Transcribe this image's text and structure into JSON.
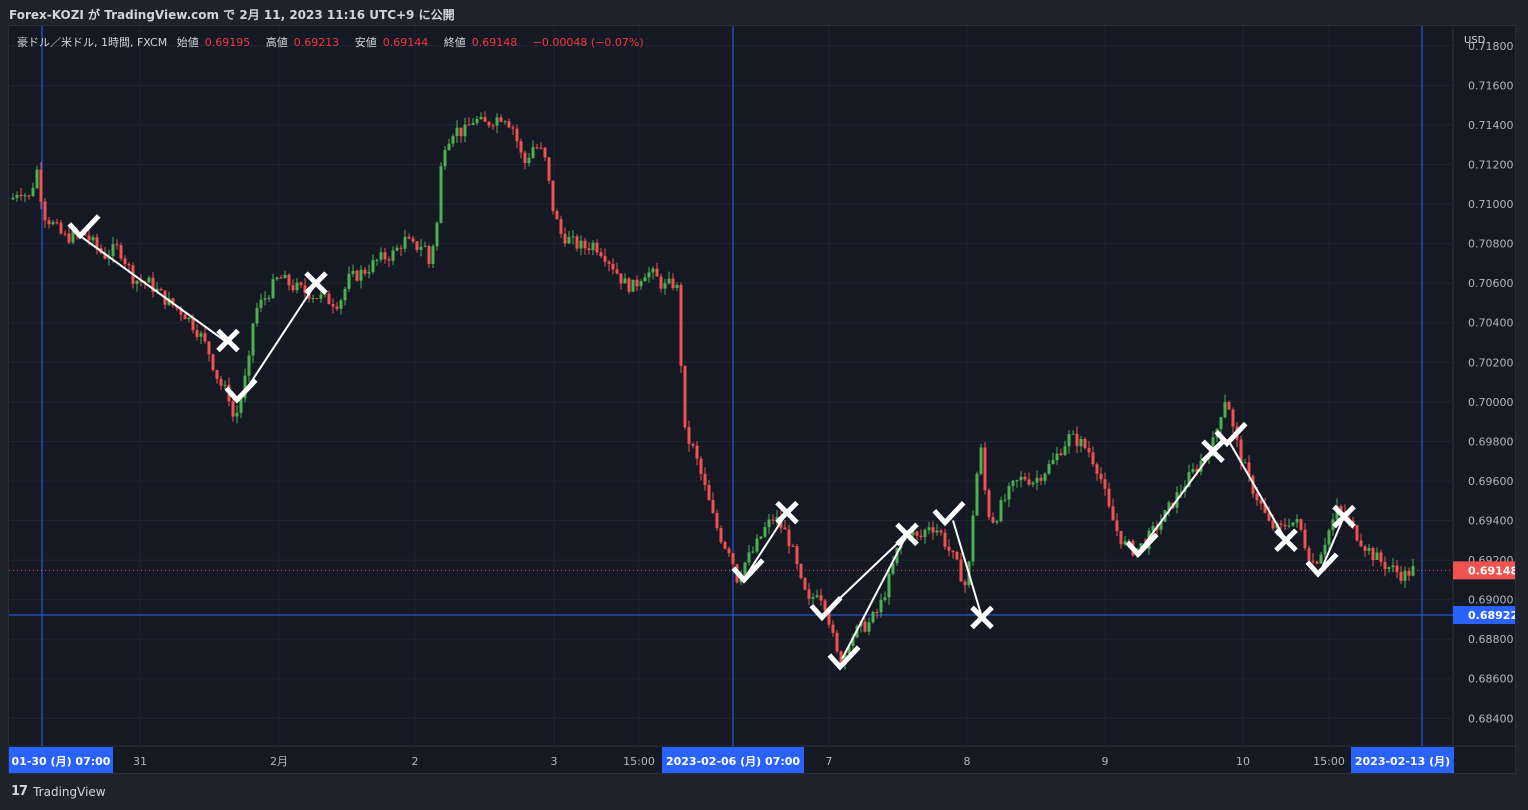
{
  "header": {
    "title": "Forex-KOZI が TradingView.com で 2月 11, 2023 11:16 UTC+9 に公開"
  },
  "legend": {
    "symbol": "豪ドル／米ドル, 1時間, FXCM",
    "open_label": "始値",
    "open": "0.69195",
    "high_label": "高値",
    "high": "0.69213",
    "low_label": "安値",
    "low": "0.69144",
    "close_label": "終値",
    "close": "0.69148",
    "change": "−0.00048 (−0.07%)"
  },
  "footer": {
    "logo": "17",
    "brand": "TradingView"
  },
  "colors": {
    "up": "#4caf50",
    "down": "#ef5350",
    "accent": "#2962ff",
    "background": "#151924"
  },
  "chart_data": {
    "type": "candlestick",
    "currency_label": "USD",
    "y_ticks": [
      "0.71800",
      "0.71600",
      "0.71400",
      "0.71200",
      "0.71000",
      "0.70800",
      "0.70600",
      "0.70400",
      "0.70200",
      "0.70000",
      "0.69800",
      "0.69600",
      "0.69400",
      "0.69200",
      "0.69000",
      "0.68800",
      "0.68600",
      "0.68400"
    ],
    "ylim": [
      0.6826,
      0.719
    ],
    "x_labels": [
      "31",
      "2月",
      "2",
      "3",
      "15:00",
      "7",
      "8",
      "9",
      "10",
      "15:00"
    ],
    "x_highlights": [
      "01-30 (月)   07:00",
      "2023-02-06 (月)   07:00",
      "2023-02-13 (月)"
    ],
    "last_price": "0.69148",
    "crosshair_price": "0.68922",
    "crosshair_value": 0.68922,
    "last_value": 0.69148,
    "price_path": [
      [
        0,
        0.71
      ],
      [
        10,
        0.7108
      ],
      [
        20,
        0.7103
      ],
      [
        28,
        0.7117
      ],
      [
        35,
        0.7095
      ],
      [
        55,
        0.7083
      ],
      [
        75,
        0.7085
      ],
      [
        95,
        0.7074
      ],
      [
        110,
        0.7078
      ],
      [
        125,
        0.7062
      ],
      [
        140,
        0.706
      ],
      [
        160,
        0.705
      ],
      [
        175,
        0.7045
      ],
      [
        190,
        0.7035
      ],
      [
        200,
        0.7025
      ],
      [
        210,
        0.701
      ],
      [
        220,
        0.7003
      ],
      [
        225,
        0.699
      ],
      [
        230,
        0.6998
      ],
      [
        240,
        0.702
      ],
      [
        245,
        0.7045
      ],
      [
        255,
        0.7052
      ],
      [
        270,
        0.7063
      ],
      [
        285,
        0.7058
      ],
      [
        300,
        0.7055
      ],
      [
        315,
        0.7052
      ],
      [
        330,
        0.705
      ],
      [
        340,
        0.7062
      ],
      [
        355,
        0.7066
      ],
      [
        370,
        0.7072
      ],
      [
        385,
        0.7075
      ],
      [
        395,
        0.7082
      ],
      [
        405,
        0.7078
      ],
      [
        415,
        0.708
      ],
      [
        420,
        0.707
      ],
      [
        428,
        0.709
      ],
      [
        430,
        0.711
      ],
      [
        435,
        0.713
      ],
      [
        445,
        0.7138
      ],
      [
        455,
        0.7136
      ],
      [
        465,
        0.7143
      ],
      [
        475,
        0.714
      ],
      [
        485,
        0.7143
      ],
      [
        495,
        0.7145
      ],
      [
        505,
        0.7138
      ],
      [
        510,
        0.7128
      ],
      [
        515,
        0.712
      ],
      [
        525,
        0.713
      ],
      [
        535,
        0.7125
      ],
      [
        540,
        0.711
      ],
      [
        545,
        0.7095
      ],
      [
        552,
        0.7085
      ],
      [
        565,
        0.708
      ],
      [
        575,
        0.7078
      ],
      [
        585,
        0.708
      ],
      [
        595,
        0.7075
      ],
      [
        605,
        0.7068
      ],
      [
        615,
        0.706
      ],
      [
        625,
        0.7058
      ],
      [
        635,
        0.7066
      ],
      [
        645,
        0.7064
      ],
      [
        655,
        0.7058
      ],
      [
        665,
        0.706
      ],
      [
        670,
        0.7055
      ],
      [
        672,
        0.702
      ],
      [
        675,
        0.6985
      ],
      [
        685,
        0.6975
      ],
      [
        695,
        0.6958
      ],
      [
        705,
        0.694
      ],
      [
        715,
        0.6928
      ],
      [
        722,
        0.6925
      ],
      [
        727,
        0.691
      ],
      [
        735,
        0.6918
      ],
      [
        745,
        0.6925
      ],
      [
        755,
        0.6935
      ],
      [
        765,
        0.6942
      ],
      [
        775,
        0.6935
      ],
      [
        780,
        0.693
      ],
      [
        785,
        0.6922
      ],
      [
        792,
        0.6908
      ],
      [
        800,
        0.6898
      ],
      [
        808,
        0.6905
      ],
      [
        815,
        0.69
      ],
      [
        820,
        0.689
      ],
      [
        825,
        0.6878
      ],
      [
        830,
        0.6868
      ],
      [
        835,
        0.6872
      ],
      [
        840,
        0.688
      ],
      [
        850,
        0.6885
      ],
      [
        860,
        0.6888
      ],
      [
        870,
        0.6895
      ],
      [
        880,
        0.691
      ],
      [
        890,
        0.6928
      ],
      [
        900,
        0.6935
      ],
      [
        910,
        0.693
      ],
      [
        920,
        0.6938
      ],
      [
        930,
        0.6935
      ],
      [
        940,
        0.6925
      ],
      [
        950,
        0.6915
      ],
      [
        958,
        0.6905
      ],
      [
        962,
        0.693
      ],
      [
        966,
        0.6958
      ],
      [
        972,
        0.6975
      ],
      [
        978,
        0.6945
      ],
      [
        985,
        0.694
      ],
      [
        995,
        0.695
      ],
      [
        1005,
        0.6958
      ],
      [
        1015,
        0.6962
      ],
      [
        1025,
        0.696
      ],
      [
        1035,
        0.6965
      ],
      [
        1045,
        0.697
      ],
      [
        1050,
        0.6975
      ],
      [
        1060,
        0.6982
      ],
      [
        1070,
        0.698
      ],
      [
        1080,
        0.6975
      ],
      [
        1090,
        0.6965
      ],
      [
        1100,
        0.6945
      ],
      [
        1108,
        0.6935
      ],
      [
        1115,
        0.6928
      ],
      [
        1125,
        0.6925
      ],
      [
        1135,
        0.6928
      ],
      [
        1145,
        0.6935
      ],
      [
        1155,
        0.6942
      ],
      [
        1165,
        0.695
      ],
      [
        1175,
        0.6958
      ],
      [
        1185,
        0.6965
      ],
      [
        1195,
        0.6972
      ],
      [
        1205,
        0.698
      ],
      [
        1212,
        0.6995
      ],
      [
        1218,
        0.7005
      ],
      [
        1222,
        0.699
      ],
      [
        1230,
        0.6975
      ],
      [
        1240,
        0.696
      ],
      [
        1250,
        0.695
      ],
      [
        1260,
        0.6938
      ],
      [
        1270,
        0.6935
      ],
      [
        1280,
        0.694
      ],
      [
        1290,
        0.6938
      ],
      [
        1298,
        0.6925
      ],
      [
        1305,
        0.6918
      ],
      [
        1312,
        0.6925
      ],
      [
        1320,
        0.6935
      ],
      [
        1328,
        0.6945
      ],
      [
        1335,
        0.6942
      ],
      [
        1345,
        0.6935
      ],
      [
        1355,
        0.6928
      ],
      [
        1365,
        0.6922
      ],
      [
        1375,
        0.6918
      ],
      [
        1385,
        0.6915
      ],
      [
        1395,
        0.6912
      ],
      [
        1403,
        0.6915
      ]
    ],
    "annotations": {
      "segments": [
        [
          [
            68,
            0.7085
          ],
          [
            218,
            0.703
          ]
        ],
        [
          [
            233,
            0.7003
          ],
          [
            307,
            0.706
          ]
        ],
        [
          [
            737,
            0.6912
          ],
          [
            778,
            0.6944
          ]
        ],
        [
          [
            817,
            0.6894
          ],
          [
            898,
            0.6933
          ]
        ],
        [
          [
            833,
            0.687
          ],
          [
            898,
            0.6933
          ]
        ],
        [
          [
            944,
            0.694
          ],
          [
            973,
            0.6891
          ]
        ],
        [
          [
            1131,
            0.6925
          ],
          [
            1204,
            0.6975
          ]
        ],
        [
          [
            1220,
            0.698
          ],
          [
            1277,
            0.693
          ]
        ],
        [
          [
            1313,
            0.6916
          ],
          [
            1335,
            0.6942
          ]
        ]
      ],
      "checks": [
        [
          75,
          0.7087
        ],
        [
          232,
          0.7004
        ],
        [
          739,
          0.6913
        ],
        [
          817,
          0.6894
        ],
        [
          835,
          0.6869
        ],
        [
          940,
          0.6942
        ],
        [
          1133,
          0.6926
        ],
        [
          1222,
          0.6982
        ],
        [
          1313,
          0.6916
        ]
      ],
      "crosses": [
        [
          307,
          0.706
        ],
        [
          219,
          0.7031
        ],
        [
          778,
          0.6944
        ],
        [
          898,
          0.6933
        ],
        [
          973,
          0.6891
        ],
        [
          1204,
          0.6975
        ],
        [
          1277,
          0.693
        ],
        [
          1335,
          0.6942
        ]
      ]
    }
  }
}
